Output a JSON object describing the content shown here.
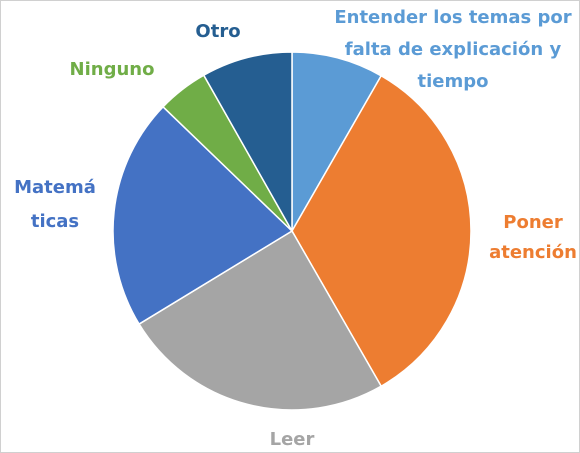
{
  "chart_data": {
    "type": "pie",
    "categories": [
      [
        "Entender los temas por",
        "falta de explicación y",
        "tiempo"
      ],
      [
        "Poner",
        "atención"
      ],
      [
        "Leer"
      ],
      [
        "Matemá",
        "ticas"
      ],
      [
        "Ninguno"
      ],
      [
        "Otro"
      ]
    ],
    "values": [
      8.3,
      33.4,
      24.6,
      20.9,
      4.6,
      8.2
    ],
    "colors": [
      "#5b9bd5",
      "#ed7d31",
      "#a5a5a5",
      "#4472c4",
      "#70ad47",
      "#255e91"
    ],
    "label_colors": [
      "#5b9bd5",
      "#ed7d31",
      "#a5a5a5",
      "#4472c4",
      "#70ad47",
      "#255e91"
    ]
  }
}
